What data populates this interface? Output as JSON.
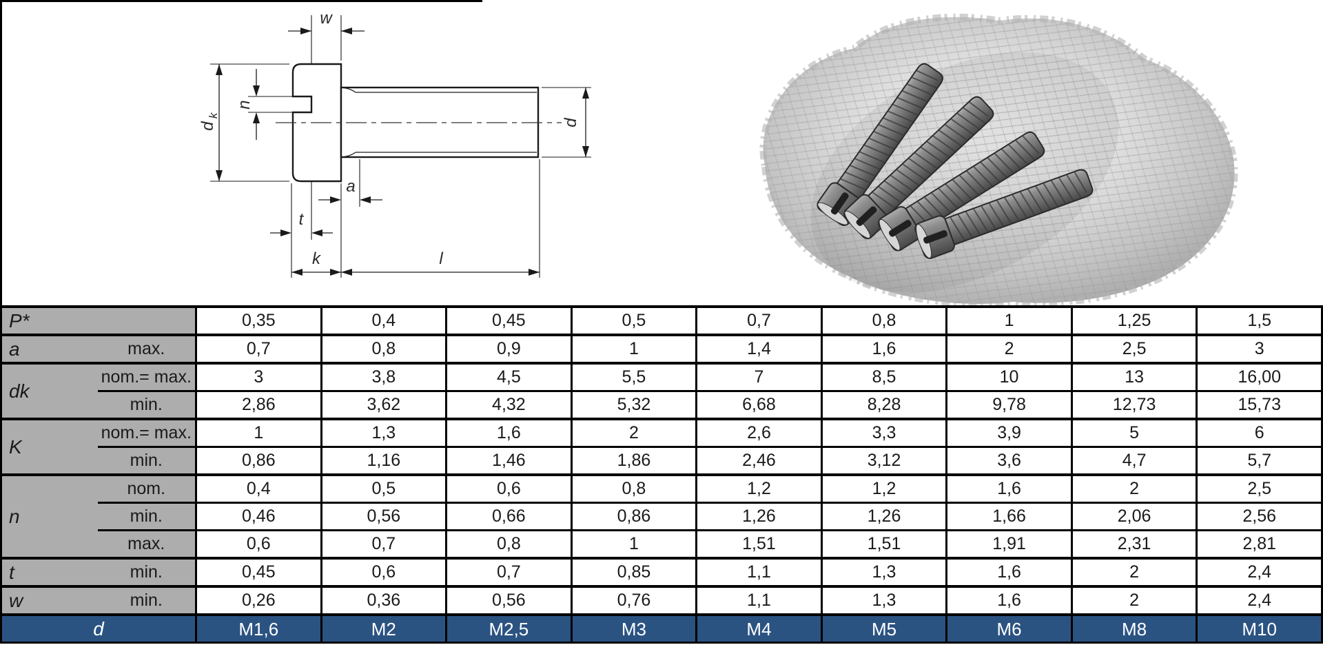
{
  "drawing": {
    "labels": {
      "w": "w",
      "dk_main": "d",
      "dk_sub": "k",
      "n": "n",
      "a": "a",
      "t": "t",
      "k": "k",
      "l": "l",
      "d": "d"
    }
  },
  "photo": {
    "alt_name": "slotted-cheese-head-screws-photo"
  },
  "table": {
    "row_groups": [
      {
        "symbol": "P*",
        "sub_rows": [
          {
            "label": "",
            "values": [
              "0,35",
              "0,4",
              "0,45",
              "0,5",
              "0,7",
              "0,8",
              "1",
              "1,25",
              "1,5"
            ]
          }
        ]
      },
      {
        "symbol": "a",
        "sub_rows": [
          {
            "label": "max.",
            "values": [
              "0,7",
              "0,8",
              "0,9",
              "1",
              "1,4",
              "1,6",
              "2",
              "2,5",
              "3"
            ]
          }
        ]
      },
      {
        "symbol": "dk",
        "sub_rows": [
          {
            "label": "nom.= max.",
            "values": [
              "3",
              "3,8",
              "4,5",
              "5,5",
              "7",
              "8,5",
              "10",
              "13",
              "16,00"
            ]
          },
          {
            "label": "min.",
            "values": [
              "2,86",
              "3,62",
              "4,32",
              "5,32",
              "6,68",
              "8,28",
              "9,78",
              "12,73",
              "15,73"
            ]
          }
        ]
      },
      {
        "symbol": "K",
        "sub_rows": [
          {
            "label": "nom.= max.",
            "values": [
              "1",
              "1,3",
              "1,6",
              "2",
              "2,6",
              "3,3",
              "3,9",
              "5",
              "6"
            ]
          },
          {
            "label": "min.",
            "values": [
              "0,86",
              "1,16",
              "1,46",
              "1,86",
              "2,46",
              "3,12",
              "3,6",
              "4,7",
              "5,7"
            ]
          }
        ]
      },
      {
        "symbol": "n",
        "sub_rows": [
          {
            "label": "nom.",
            "values": [
              "0,4",
              "0,5",
              "0,6",
              "0,8",
              "1,2",
              "1,2",
              "1,6",
              "2",
              "2,5"
            ]
          },
          {
            "label": "min.",
            "values": [
              "0,46",
              "0,56",
              "0,66",
              "0,86",
              "1,26",
              "1,26",
              "1,66",
              "2,06",
              "2,56"
            ]
          },
          {
            "label": "max.",
            "values": [
              "0,6",
              "0,7",
              "0,8",
              "1",
              "1,51",
              "1,51",
              "1,91",
              "2,31",
              "2,81"
            ]
          }
        ]
      },
      {
        "symbol": "t",
        "sub_rows": [
          {
            "label": "min.",
            "values": [
              "0,45",
              "0,6",
              "0,7",
              "0,85",
              "1,1",
              "1,3",
              "1,6",
              "2",
              "2,4"
            ]
          }
        ]
      },
      {
        "symbol": "w",
        "sub_rows": [
          {
            "label": "min.",
            "values": [
              "0,26",
              "0,36",
              "0,56",
              "0,76",
              "1,1",
              "1,3",
              "1,6",
              "2",
              "2,4"
            ]
          }
        ]
      }
    ],
    "footer": {
      "symbol": "d",
      "values": [
        "M1,6",
        "M2",
        "M2,5",
        "M3",
        "M4",
        "M5",
        "M6",
        "M8",
        "M10"
      ]
    }
  },
  "colors": {
    "header_gray": "#ADADAD",
    "footer_blue": "#2B5382",
    "line_black": "#000000"
  }
}
